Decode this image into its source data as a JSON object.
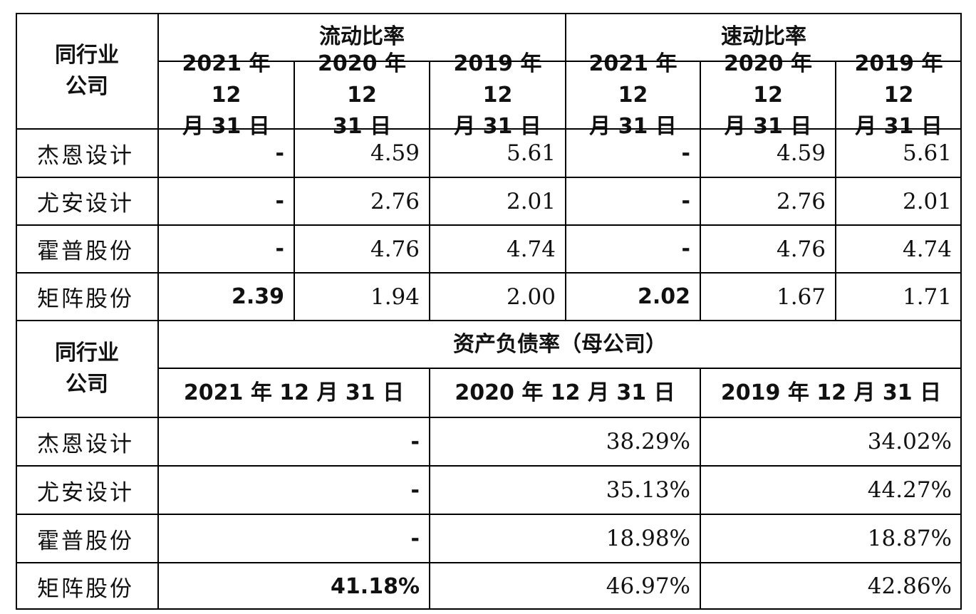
{
  "top": {
    "corner": "同行业\n公司",
    "group_current": "流动比率",
    "group_quick": "速动比率",
    "dates": [
      "2021 年 12\n月 31 日",
      "2020 年 12\n31 日",
      "2019 年 12\n月 31 日",
      "2021 年 12\n月 31 日",
      "2020 年 12\n月 31 日",
      "2019 年 12\n月 31 日"
    ],
    "rows": [
      {
        "name": "杰恩设计",
        "values": [
          "-",
          "4.59",
          "5.61",
          "-",
          "4.59",
          "5.61"
        ]
      },
      {
        "name": "尤安设计",
        "values": [
          "-",
          "2.76",
          "2.01",
          "-",
          "2.76",
          "2.01"
        ]
      },
      {
        "name": "霍普股份",
        "values": [
          "-",
          "4.76",
          "4.74",
          "-",
          "4.76",
          "4.74"
        ]
      },
      {
        "name": "矩阵股份",
        "values": [
          "2.39",
          "1.94",
          "2.00",
          "2.02",
          "1.67",
          "1.71"
        ]
      }
    ]
  },
  "bottom": {
    "corner": "同行业\n公司",
    "group": "资产负债率（母公司）",
    "dates": [
      "2021 年 12 月 31 日",
      "2020 年 12 月 31 日",
      "2019 年 12 月 31 日"
    ],
    "rows": [
      {
        "name": "杰恩设计",
        "values": [
          "-",
          "38.29%",
          "34.02%"
        ]
      },
      {
        "name": "尤安设计",
        "values": [
          "-",
          "35.13%",
          "44.27%"
        ]
      },
      {
        "name": "霍普股份",
        "values": [
          "-",
          "18.98%",
          "18.87%"
        ]
      },
      {
        "name": "矩阵股份",
        "values": [
          "41.18%",
          "46.97%",
          "42.86%"
        ]
      }
    ]
  }
}
